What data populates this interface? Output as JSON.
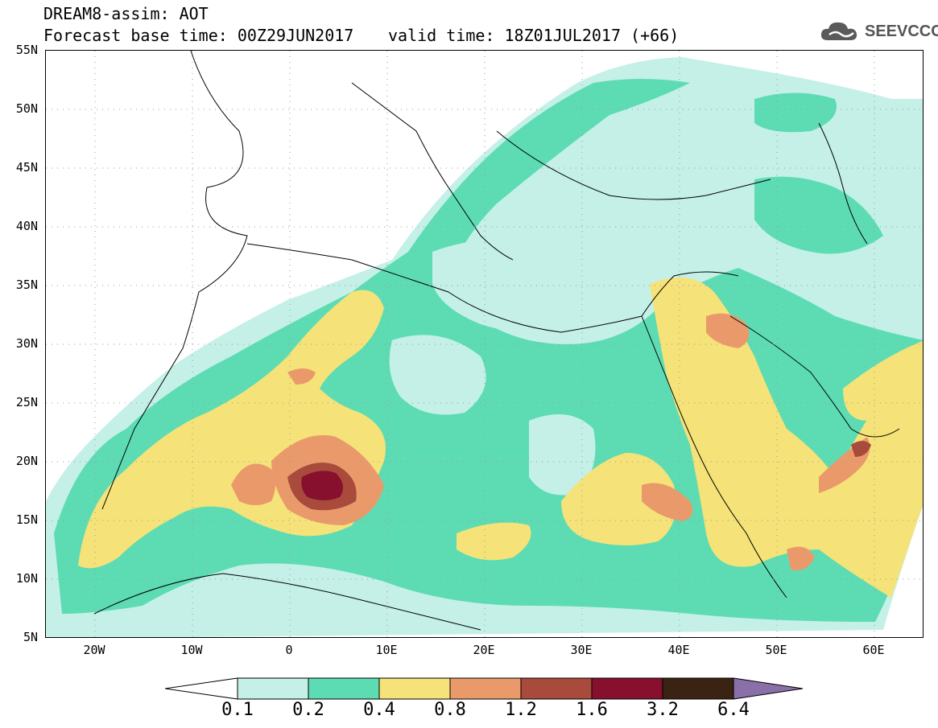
{
  "header": {
    "title": "DREAM8-assim: AOT",
    "base_time": "Forecast base time: 00Z29JUN2017",
    "valid_time": "valid time: 18Z01JUL2017 (+66)"
  },
  "logo": {
    "text": "SEEVCCC",
    "icon": "cloud-logo-icon"
  },
  "map": {
    "lat_labels": [
      "55N",
      "50N",
      "45N",
      "40N",
      "35N",
      "30N",
      "25N",
      "20N",
      "15N",
      "10N",
      "5N"
    ],
    "lon_labels": [
      "20W",
      "10W",
      "0",
      "10E",
      "20E",
      "30E",
      "40E",
      "50E",
      "60E"
    ]
  },
  "colorbar": {
    "labels": [
      "0.1",
      "0.2",
      "0.4",
      "0.8",
      "1.2",
      "1.6",
      "3.2",
      "6.4"
    ],
    "colors": [
      "#ffffff",
      "#c4f0e8",
      "#5ddcb4",
      "#f5e278",
      "#ea9a6a",
      "#a84a3c",
      "#86102e",
      "#3b2314",
      "#8a70a8"
    ]
  },
  "palette": {
    "c1": "#c4f0e8",
    "c2": "#5ddcb4",
    "c3": "#f5e278",
    "c4": "#ea9a6a",
    "c5": "#a84a3c",
    "c6": "#86102e"
  }
}
